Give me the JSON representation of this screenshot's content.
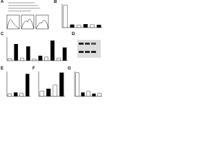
{
  "panels": [
    {
      "label": "A"
    },
    {
      "label": "B",
      "chart": {
        "type": "bar",
        "values": [
          95,
          12,
          10,
          14,
          12,
          11
        ],
        "ylim": [
          0,
          100
        ]
      }
    },
    {
      "label": "C",
      "chart": {
        "type": "bar",
        "values": [
          8,
          70,
          10,
          60,
          6,
          20,
          15,
          85,
          10,
          55
        ],
        "ylim": [
          0,
          100
        ]
      }
    },
    {
      "label": "D"
    },
    {
      "label": "E",
      "chart": {
        "type": "bar",
        "values": [
          10,
          15,
          12,
          90
        ],
        "ylim": [
          0,
          100
        ]
      }
    },
    {
      "label": "F",
      "chart": {
        "type": "bar",
        "values": [
          20,
          30,
          45,
          95
        ],
        "ylim": [
          0,
          100
        ]
      }
    },
    {
      "label": "G",
      "chart": {
        "type": "bar",
        "values": [
          95,
          15,
          20,
          10,
          12
        ],
        "ylim": [
          0,
          100
        ]
      }
    }
  ]
}
